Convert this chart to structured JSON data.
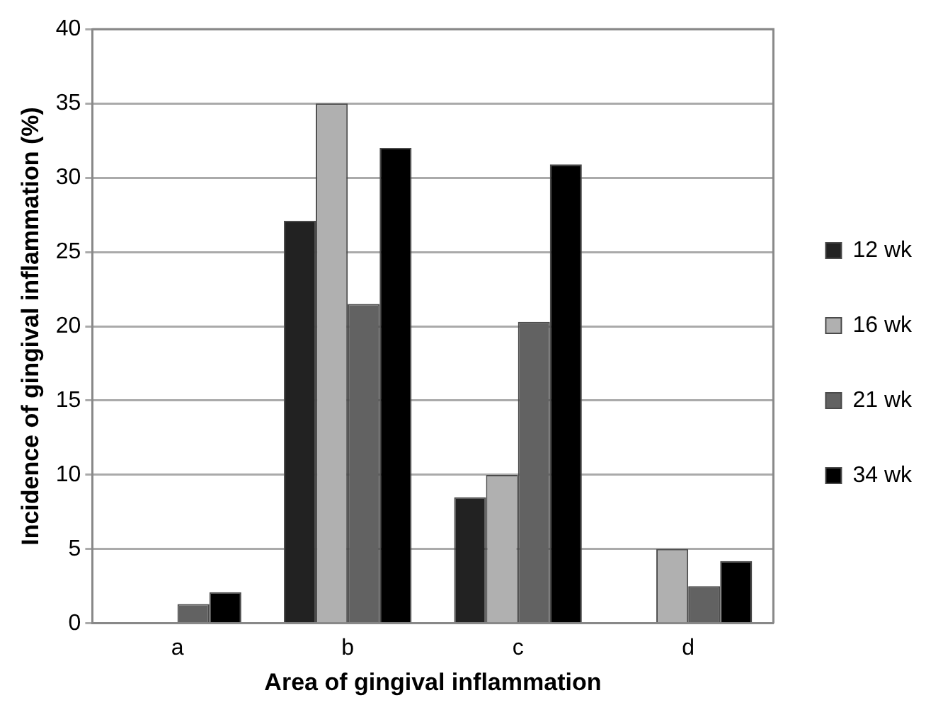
{
  "chart_data": {
    "type": "bar",
    "xlabel": "Area of gingival inflammation",
    "ylabel": "Incidence of gingival inflammation (%)",
    "categories": [
      "a",
      "b",
      "c",
      "d"
    ],
    "series": [
      {
        "name": "12 wk",
        "color": "#222222",
        "values": [
          0,
          27.1,
          8.5,
          0
        ]
      },
      {
        "name": "16 wk",
        "color": "#b0b0b0",
        "values": [
          0,
          35,
          10,
          5
        ]
      },
      {
        "name": "21 wk",
        "color": "#626262",
        "values": [
          1.3,
          21.5,
          20.3,
          2.5
        ]
      },
      {
        "name": "34 wk",
        "color": "#000000",
        "values": [
          2.1,
          32,
          30.9,
          4.2
        ]
      }
    ],
    "ylim": [
      0,
      40
    ],
    "yticks": [
      0,
      5,
      10,
      15,
      20,
      25,
      30,
      35,
      40
    ],
    "grid": "y",
    "legend": "right"
  }
}
